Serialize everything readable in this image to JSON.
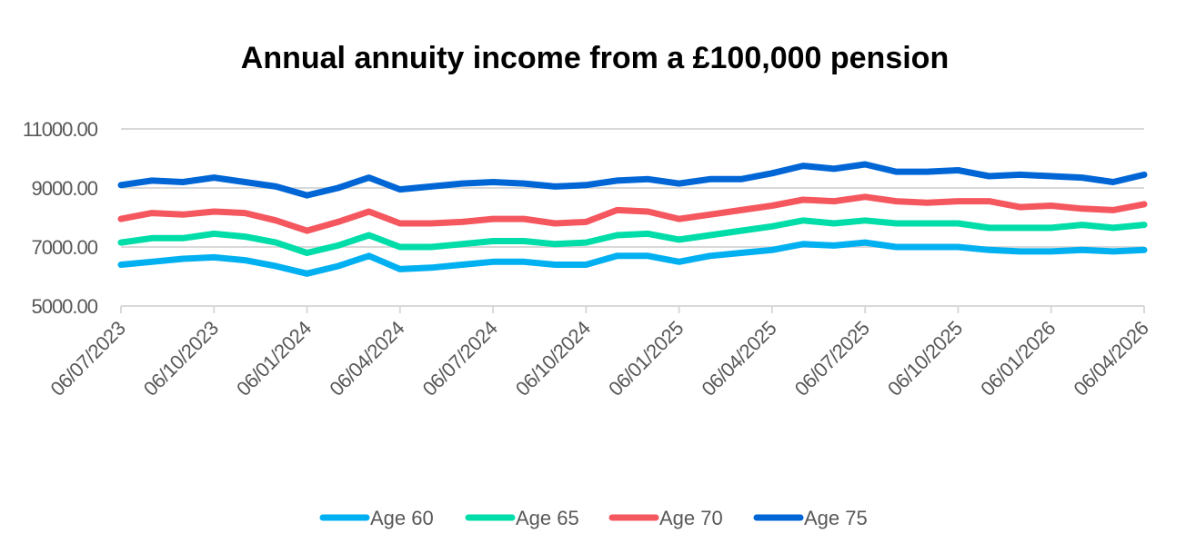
{
  "chart_data": {
    "type": "line",
    "title": "Annual annuity income from a £100,000 pension",
    "xlabel": "",
    "ylabel": "",
    "ylim": [
      5000,
      11000
    ],
    "yticks": [
      "5000.00",
      "7000.00",
      "9000.00",
      "11000.00"
    ],
    "ytick_values": [
      5000,
      7000,
      9000,
      11000
    ],
    "xtick_labels": [
      "06/07/2023",
      "06/10/2023",
      "06/01/2024",
      "06/04/2024",
      "06/07/2024",
      "06/10/2024",
      "06/01/2025",
      "06/04/2025",
      "06/07/2025",
      "06/10/2025",
      "06/01/2026",
      "06/04/2026"
    ],
    "grid": "horizontal",
    "legend": "bottom",
    "x": [
      "2023-07",
      "2023-08",
      "2023-09",
      "2023-10",
      "2023-11",
      "2023-12",
      "2024-01",
      "2024-02",
      "2024-03",
      "2024-04",
      "2024-05",
      "2024-06",
      "2024-07",
      "2024-08",
      "2024-09",
      "2024-10",
      "2024-11",
      "2024-12",
      "2025-01",
      "2025-02",
      "2025-03",
      "2025-04",
      "2025-05",
      "2025-06",
      "2025-07",
      "2025-08",
      "2025-09",
      "2025-10",
      "2025-11",
      "2025-12",
      "2026-01",
      "2026-02",
      "2026-03",
      "2026-04"
    ],
    "series": [
      {
        "name": "Age 60",
        "color": "#00B0F0",
        "values": [
          6400,
          6500,
          6600,
          6650,
          6550,
          6350,
          6100,
          6350,
          6700,
          6250,
          6300,
          6400,
          6500,
          6500,
          6400,
          6400,
          6700,
          6700,
          6500,
          6700,
          6800,
          6900,
          7100,
          7050,
          7150,
          7000,
          7000,
          7000,
          6900,
          6850,
          6850,
          6900,
          6850,
          6900
        ]
      },
      {
        "name": "Age 65",
        "color": "#00DDA8",
        "values": [
          7150,
          7300,
          7300,
          7450,
          7350,
          7150,
          6800,
          7050,
          7400,
          7000,
          7000,
          7100,
          7200,
          7200,
          7100,
          7150,
          7400,
          7450,
          7250,
          7400,
          7550,
          7700,
          7900,
          7800,
          7900,
          7800,
          7800,
          7800,
          7650,
          7650,
          7650,
          7750,
          7650,
          7750
        ]
      },
      {
        "name": "Age 70",
        "color": "#F5575F",
        "values": [
          7950,
          8150,
          8100,
          8200,
          8150,
          7900,
          7550,
          7850,
          8200,
          7800,
          7800,
          7850,
          7950,
          7950,
          7800,
          7850,
          8250,
          8200,
          7950,
          8100,
          8250,
          8400,
          8600,
          8550,
          8700,
          8550,
          8500,
          8550,
          8550,
          8350,
          8400,
          8300,
          8250,
          8450
        ]
      },
      {
        "name": "Age 75",
        "color": "#0066D6",
        "values": [
          9100,
          9250,
          9200,
          9350,
          9200,
          9050,
          8750,
          9000,
          9350,
          8950,
          9050,
          9150,
          9200,
          9150,
          9050,
          9100,
          9250,
          9300,
          9150,
          9300,
          9300,
          9500,
          9750,
          9650,
          9800,
          9550,
          9550,
          9600,
          9400,
          9450,
          9400,
          9350,
          9200,
          9450
        ]
      }
    ]
  }
}
